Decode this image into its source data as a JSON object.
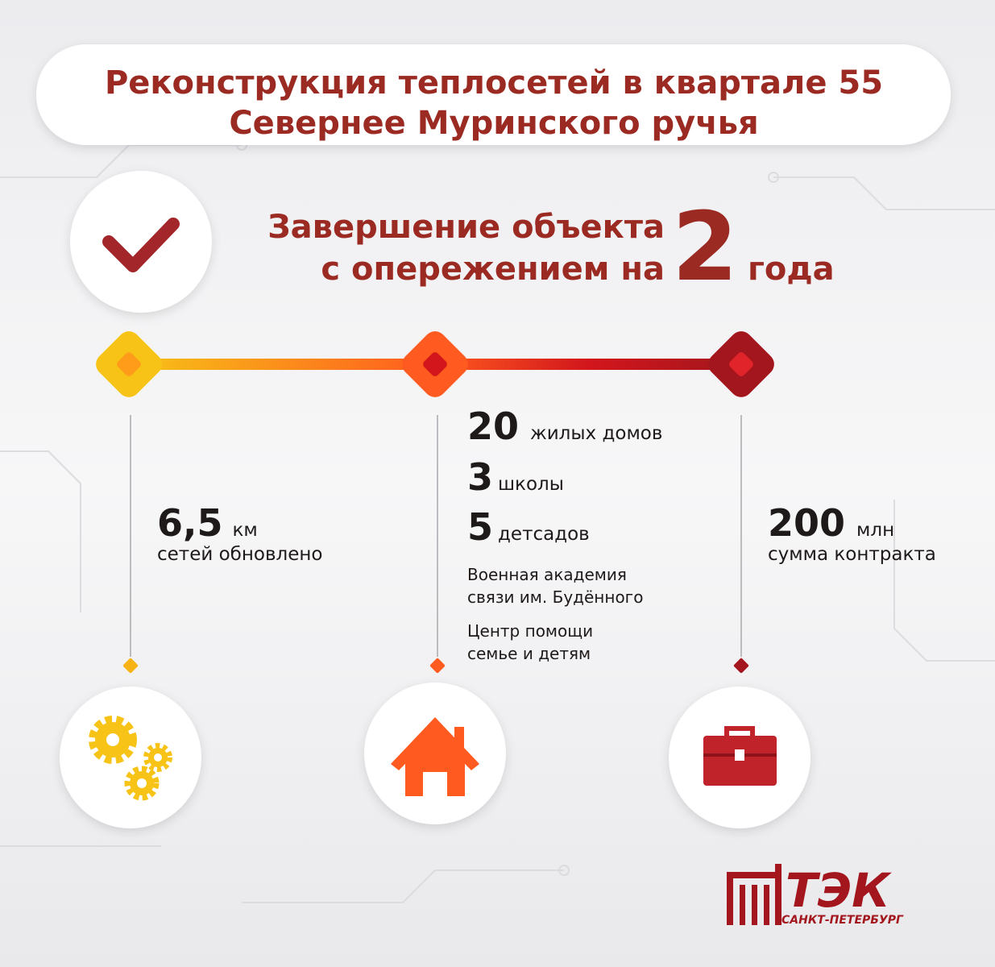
{
  "title": {
    "lines": [
      "Реконструкция теплосетей в квартале 55",
      "Севернее Муринского ручья"
    ]
  },
  "headline": {
    "line1": "Завершение объекта",
    "line2": "с опережением на",
    "number": "2",
    "unit": "года"
  },
  "columns": [
    {
      "number": "6,5",
      "unit": "км",
      "caption": "сетей обновлено"
    },
    {
      "items": [
        {
          "number": "20",
          "text": "жилых домов"
        },
        {
          "number": "3",
          "text": "школы"
        },
        {
          "number": "5",
          "text": "детсадов"
        }
      ],
      "notes": [
        [
          "Военная академия",
          "связи им. Будённого"
        ],
        [
          "Центр помощи",
          "семье и детям"
        ]
      ]
    },
    {
      "number": "200",
      "unit": "млн",
      "caption": "сумма контракта"
    }
  ],
  "logo": {
    "name": "ТЭК",
    "city": "САНКТ-ПЕТЕРБУРГ"
  }
}
